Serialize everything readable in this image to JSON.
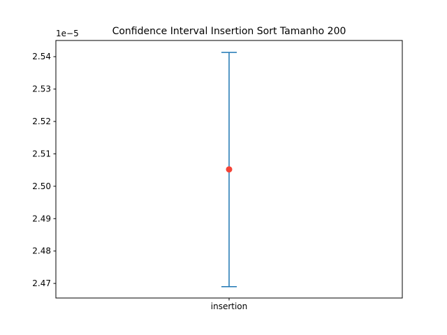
{
  "chart_data": {
    "type": "errorbar",
    "title": "Confidence Interval Insertion Sort Tamanho 200",
    "xlabel": "",
    "ylabel": "",
    "offset_text": "1e−5",
    "scale": 1e-05,
    "categories": [
      "insertion"
    ],
    "points": [
      {
        "category": "insertion",
        "mean": 2.5052,
        "lower": 2.469,
        "upper": 2.5413
      }
    ],
    "ylim": [
      2.4655,
      2.545
    ],
    "yticks": [
      2.47,
      2.48,
      2.49,
      2.5,
      2.51,
      2.52,
      2.53,
      2.54
    ],
    "ytick_labels": [
      "2.47",
      "2.48",
      "2.49",
      "2.50",
      "2.51",
      "2.52",
      "2.53",
      "2.54"
    ],
    "grid": false,
    "colors": {
      "errorbar": "#1f77b4",
      "mean_marker": "#f44336",
      "axes": "#000000"
    }
  }
}
